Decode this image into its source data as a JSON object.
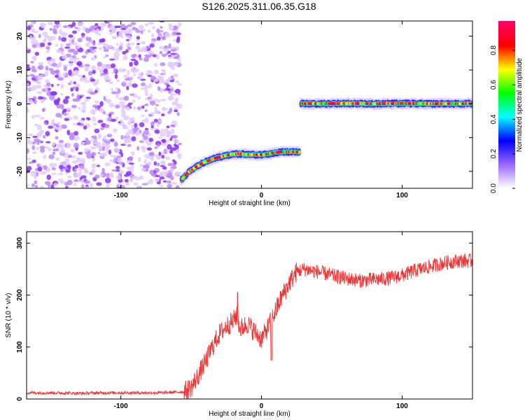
{
  "title": "S126.2025.311.06.35.G18",
  "chart_data": [
    {
      "type": "heatmap",
      "xlabel": "Height of straight line (km)",
      "ylabel": "Frequency (Hz)",
      "xlim": [
        -167,
        150
      ],
      "ylim": [
        -25,
        24.5
      ],
      "xticks": [
        -100,
        0,
        100
      ],
      "yticks": [
        -20,
        -10,
        0,
        10,
        20
      ],
      "colorbar": {
        "label": "Normalized spectral amplitude",
        "range": [
          0,
          0.97
        ],
        "ticks": [
          0.0,
          0.2,
          0.4,
          0.6,
          0.8
        ],
        "colors": [
          "#ffffff",
          "#9966ff",
          "#0000ff",
          "#00ffff",
          "#00ff00",
          "#ffff00",
          "#ff0000",
          "#ff0066"
        ]
      },
      "noise_region": {
        "x_range": [
          -167,
          -58
        ],
        "freq_range": [
          -25,
          24.5
        ],
        "amplitude_range": [
          0.0,
          0.12
        ]
      },
      "ridge_1": {
        "x": [
          -57,
          -52,
          -46,
          -40,
          -34,
          -28,
          -22,
          -16,
          -10,
          -4,
          2,
          8,
          14,
          20,
          27
        ],
        "freq": [
          -22.5,
          -20.3,
          -18.5,
          -17.2,
          -16.2,
          -15.6,
          -15.0,
          -14.8,
          -15.0,
          -15.1,
          -15.0,
          -14.6,
          -14.2,
          -14.2,
          -14.3
        ],
        "peak_amplitude": 0.95
      },
      "ridge_2": {
        "x": [
          28,
          40,
          60,
          80,
          100,
          120,
          140,
          150
        ],
        "freq": [
          0.1,
          0.0,
          0.1,
          0.0,
          0.1,
          0.0,
          0.0,
          0.1
        ],
        "peak_amplitude": 0.97
      }
    },
    {
      "type": "line",
      "xlabel": "Height of straight line (km)",
      "ylabel": "SNR (10 * v/v)",
      "xlim": [
        -167,
        150
      ],
      "ylim": [
        0,
        322
      ],
      "xticks": [
        -100,
        0,
        100
      ],
      "yticks": [
        0,
        100,
        200,
        300
      ],
      "color": "#ee3333",
      "x": [
        -167,
        -150,
        -130,
        -110,
        -90,
        -70,
        -55,
        -50,
        -45,
        -40,
        -35,
        -30,
        -25,
        -20,
        -18,
        -15,
        -10,
        -5,
        0,
        5,
        10,
        15,
        20,
        25,
        30,
        40,
        50,
        60,
        70,
        80,
        90,
        100,
        110,
        120,
        130,
        140,
        150
      ],
      "values": [
        12,
        12,
        11,
        12,
        12,
        12,
        14,
        22,
        45,
        70,
        100,
        125,
        140,
        150,
        162,
        135,
        145,
        130,
        115,
        140,
        170,
        200,
        225,
        245,
        250,
        245,
        238,
        232,
        228,
        230,
        232,
        238,
        248,
        255,
        262,
        266,
        266
      ]
    }
  ]
}
